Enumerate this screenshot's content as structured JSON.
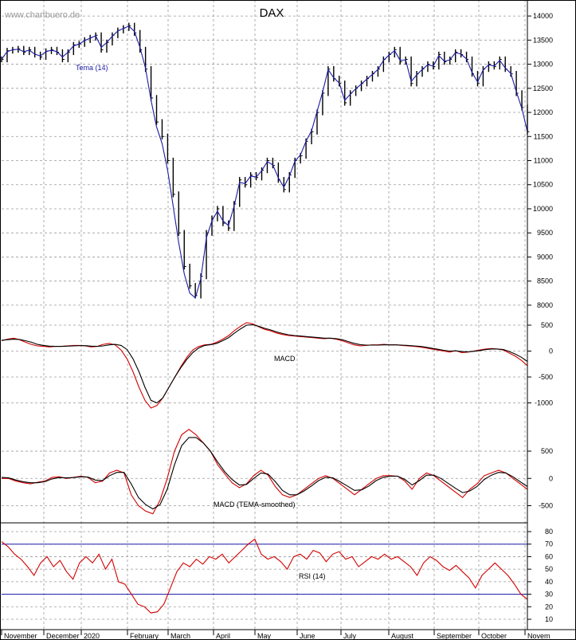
{
  "watermark": "www.chartbuero.de",
  "title": "DAX",
  "colors": {
    "price": "#000000",
    "tema": "#1a1aa8",
    "signal": "#000000",
    "macd": "#d40000",
    "rsi": "#d40000",
    "rsi_bands": "#1a1aa8",
    "grid": "#9a9a9a",
    "axis": "#000000"
  },
  "months": [
    "November",
    "December",
    "2020",
    "February",
    "March",
    "April",
    "May",
    "June",
    "July",
    "August",
    "September",
    "October",
    "Novem"
  ],
  "chart_data": [
    {
      "type": "line",
      "panel": "price",
      "y_ticks": [
        8000,
        8500,
        9000,
        9500,
        10000,
        10500,
        11000,
        11500,
        12000,
        12500,
        13000,
        13500,
        14000
      ],
      "ylim": [
        8000,
        14000
      ],
      "series": [
        {
          "name": "",
          "style": "ohlc-bars",
          "values": [
            13100,
            13280,
            13300,
            13320,
            13250,
            13300,
            13200,
            13150,
            13270,
            13300,
            13250,
            13100,
            13250,
            13400,
            13420,
            13500,
            13550,
            13600,
            13300,
            13450,
            13600,
            13700,
            13750,
            13800,
            13650,
            13300,
            12900,
            12300,
            11800,
            11500,
            11000,
            10300,
            9500,
            8800,
            8400,
            8200,
            8600,
            9500,
            9800,
            10000,
            9700,
            9600,
            10100,
            10600,
            10500,
            10700,
            10650,
            10800,
            11000,
            10900,
            10600,
            10400,
            10700,
            11000,
            11100,
            11400,
            11600,
            12000,
            12400,
            12900,
            12700,
            12600,
            12200,
            12400,
            12500,
            12600,
            12700,
            12800,
            12900,
            13100,
            13200,
            13300,
            13050,
            13100,
            12600,
            12800,
            12900,
            13000,
            12950,
            13200,
            13050,
            13100,
            13250,
            13200,
            13100,
            12800,
            12600,
            12900,
            13000,
            12950,
            13100,
            12900,
            12800,
            12400,
            12100,
            11600
          ]
        },
        {
          "name": "Tema (14)",
          "values": [
            13100,
            13260,
            13300,
            13310,
            13260,
            13290,
            13210,
            13170,
            13260,
            13290,
            13260,
            13150,
            13250,
            13380,
            13420,
            13490,
            13540,
            13590,
            13350,
            13450,
            13580,
            13690,
            13740,
            13790,
            13680,
            13350,
            12920,
            12250,
            11700,
            11350,
            10800,
            10050,
            9300,
            8650,
            8250,
            8150,
            8550,
            9400,
            9750,
            9950,
            9750,
            9650,
            10050,
            10550,
            10520,
            10680,
            10660,
            10790,
            10980,
            10910,
            10640,
            10450,
            10680,
            10990,
            11120,
            11400,
            11620,
            12020,
            12420,
            12890,
            12720,
            12610,
            12250,
            12380,
            12490,
            12590,
            12690,
            12790,
            12890,
            13080,
            13190,
            13280,
            13080,
            13090,
            12640,
            12780,
            12890,
            12990,
            12960,
            13180,
            13060,
            13090,
            13240,
            13210,
            13110,
            12830,
            12630,
            12880,
            12990,
            12960,
            13080,
            12920,
            12810,
            12430,
            12080,
            11600
          ]
        }
      ]
    },
    {
      "type": "line",
      "panel": "macd",
      "y_ticks": [
        -1000,
        -500,
        0,
        500
      ],
      "series": [
        {
          "name": "MACD",
          "values": [
            200,
            230,
            250,
            220,
            170,
            130,
            100,
            90,
            80,
            90,
            90,
            100,
            110,
            110,
            100,
            80,
            90,
            130,
            150,
            120,
            20,
            -150,
            -400,
            -700,
            -950,
            -1100,
            -1050,
            -900,
            -700,
            -500,
            -300,
            -120,
            20,
            90,
            120,
            130,
            170,
            230,
            300,
            400,
            480,
            550,
            530,
            470,
            420,
            390,
            350,
            320,
            300,
            290,
            280,
            270,
            260,
            250,
            240,
            250,
            230,
            200,
            160,
            120,
            100,
            110,
            120,
            120,
            130,
            120,
            120,
            110,
            100,
            90,
            80,
            60,
            40,
            20,
            0,
            -20,
            10,
            -30,
            -20,
            0,
            20,
            40,
            50,
            40,
            20,
            -40,
            -100,
            -180,
            -280
          ]
        },
        {
          "name": "",
          "values": [
            210,
            220,
            230,
            225,
            200,
            170,
            130,
            110,
            95,
            90,
            90,
            95,
            100,
            105,
            105,
            95,
            90,
            100,
            120,
            130,
            110,
            30,
            -150,
            -400,
            -700,
            -950,
            -1000,
            -900,
            -700,
            -500,
            -320,
            -160,
            -30,
            60,
            110,
            125,
            150,
            200,
            260,
            350,
            430,
            500,
            510,
            480,
            440,
            410,
            370,
            340,
            315,
            300,
            290,
            280,
            270,
            260,
            250,
            250,
            240,
            220,
            185,
            150,
            125,
            115,
            115,
            115,
            120,
            120,
            120,
            115,
            110,
            100,
            90,
            75,
            55,
            35,
            15,
            0,
            5,
            -10,
            -15,
            -5,
            10,
            30,
            40,
            40,
            30,
            -10,
            -60,
            -120,
            -200
          ]
        }
      ]
    },
    {
      "type": "line",
      "panel": "macd_tema",
      "y_ticks": [
        -500,
        0,
        500
      ],
      "series": [
        {
          "name": "MACD (TEMA-smoothed)",
          "values": [
            0,
            0,
            -50,
            -80,
            -100,
            -70,
            -50,
            20,
            30,
            0,
            20,
            40,
            20,
            -80,
            -50,
            100,
            150,
            100,
            -300,
            -500,
            -600,
            -650,
            -400,
            0,
            500,
            800,
            900,
            800,
            650,
            500,
            250,
            80,
            -80,
            -170,
            -100,
            50,
            150,
            60,
            -150,
            -300,
            -350,
            -300,
            -200,
            -100,
            0,
            50,
            0,
            -100,
            -200,
            -300,
            -200,
            -100,
            0,
            50,
            50,
            40,
            -50,
            -200,
            0,
            100,
            50,
            -50,
            -150,
            -250,
            -350,
            -200,
            -100,
            50,
            100,
            150,
            100,
            0,
            -100,
            -200
          ]
        },
        {
          "name": "",
          "values": [
            20,
            10,
            -30,
            -60,
            -80,
            -80,
            -60,
            -10,
            15,
            10,
            15,
            30,
            25,
            -30,
            -40,
            50,
            110,
            110,
            -100,
            -350,
            -480,
            -560,
            -480,
            -200,
            250,
            600,
            750,
            750,
            650,
            500,
            300,
            120,
            -20,
            -120,
            -110,
            0,
            100,
            80,
            -60,
            -220,
            -300,
            -300,
            -230,
            -140,
            -40,
            20,
            10,
            -60,
            -140,
            -220,
            -210,
            -140,
            -40,
            20,
            40,
            40,
            -20,
            -120,
            -40,
            60,
            60,
            0,
            -90,
            -180,
            -260,
            -230,
            -150,
            -20,
            60,
            110,
            100,
            30,
            -60,
            -150
          ]
        }
      ]
    },
    {
      "type": "line",
      "panel": "rsi",
      "y_ticks": [
        10,
        20,
        30,
        40,
        50,
        60,
        70,
        80
      ],
      "reference_lines": [
        30,
        70
      ],
      "series": [
        {
          "name": "RSI (14)",
          "values": [
            72,
            68,
            62,
            58,
            52,
            45,
            55,
            60,
            52,
            57,
            48,
            42,
            55,
            60,
            55,
            62,
            50,
            58,
            40,
            38,
            30,
            22,
            20,
            15,
            16,
            22,
            35,
            48,
            55,
            52,
            58,
            54,
            60,
            58,
            62,
            55,
            60,
            65,
            70,
            74,
            62,
            58,
            60,
            56,
            50,
            60,
            62,
            58,
            65,
            63,
            56,
            62,
            64,
            58,
            60,
            52,
            56,
            60,
            58,
            62,
            58,
            60,
            56,
            52,
            45,
            55,
            60,
            57,
            52,
            49,
            53,
            48,
            43,
            35,
            45,
            50,
            55,
            50,
            45,
            38,
            30,
            26
          ]
        }
      ]
    }
  ]
}
